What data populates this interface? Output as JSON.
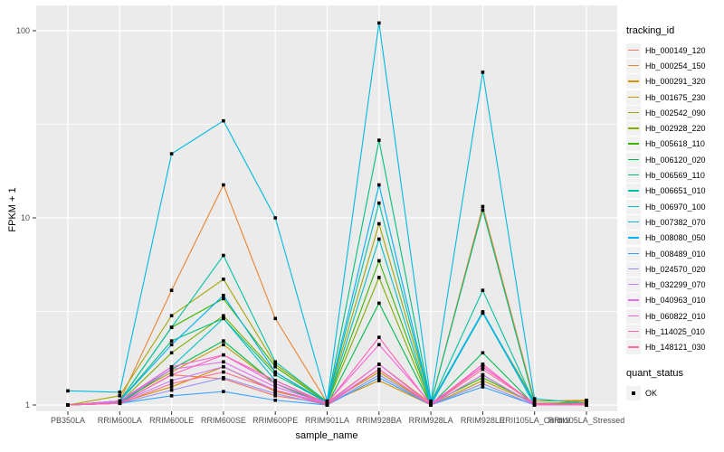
{
  "chart_data": {
    "type": "line",
    "title": "",
    "xlabel": "sample_name",
    "ylabel": "FPKM + 1",
    "y_scale": "log10",
    "y_ticks": [
      1,
      10,
      100
    ],
    "y_minor_gridlines": [
      3.162,
      31.623
    ],
    "ylim": [
      0.95,
      135
    ],
    "grid": true,
    "legend_position": "right",
    "legend_title": "tracking_id",
    "legend2": {
      "title": "quant_status",
      "items": [
        "OK"
      ]
    },
    "categories": [
      "PB350LA",
      "RRIM600LA",
      "RRIM600LE",
      "RRIM600SE",
      "RRIM600PE",
      "RRIM901LA",
      "RRIM928BA",
      "RRIM928LA",
      "RRIM928LE",
      "RRII105LA_Control",
      "RRII105LA_Stressed"
    ],
    "series": [
      {
        "name": "Hb_000149_120",
        "color": "#F8766D",
        "values": [
          1.0,
          1.02,
          1.45,
          1.38,
          1.12,
          1.02,
          1.55,
          1.0,
          1.6,
          1.02,
          1.02
        ]
      },
      {
        "name": "Hb_000254_150",
        "color": "#EA8331",
        "values": [
          1.0,
          1.05,
          4.1,
          15.0,
          2.9,
          1.03,
          1.65,
          1.02,
          11.5,
          1.05,
          1.06
        ]
      },
      {
        "name": "Hb_000291_320",
        "color": "#D89000",
        "values": [
          1.0,
          1.03,
          1.25,
          1.6,
          1.18,
          1.02,
          1.35,
          1.0,
          1.3,
          1.0,
          1.05
        ]
      },
      {
        "name": "Hb_001675_230",
        "color": "#C09B00",
        "values": [
          1.0,
          1.04,
          1.5,
          2.1,
          1.3,
          1.02,
          1.5,
          1.0,
          1.35,
          1.02,
          1.03
        ]
      },
      {
        "name": "Hb_002542_090",
        "color": "#A3A500",
        "values": [
          1.0,
          1.12,
          3.0,
          4.7,
          1.65,
          1.04,
          9.3,
          1.03,
          3.1,
          1.05,
          1.05
        ]
      },
      {
        "name": "Hb_002928_220",
        "color": "#7CAE00",
        "values": [
          1.0,
          1.03,
          1.9,
          3.0,
          1.5,
          1.02,
          4.8,
          1.0,
          1.45,
          1.0,
          1.02
        ]
      },
      {
        "name": "Hb_005618_110",
        "color": "#39B600",
        "values": [
          1.0,
          1.05,
          2.6,
          3.7,
          1.6,
          1.03,
          5.9,
          1.02,
          1.4,
          1.02,
          1.02
        ]
      },
      {
        "name": "Hb_006120_020",
        "color": "#00BB4E",
        "values": [
          1.0,
          1.02,
          1.55,
          2.2,
          1.3,
          1.0,
          3.5,
          1.0,
          1.9,
          1.0,
          1.0
        ]
      },
      {
        "name": "Hb_006569_110",
        "color": "#00BF7D",
        "values": [
          1.0,
          1.05,
          2.2,
          2.9,
          1.45,
          1.03,
          26.0,
          1.02,
          11.0,
          1.02,
          1.0
        ]
      },
      {
        "name": "Hb_006651_010",
        "color": "#00C1A3",
        "values": [
          1.0,
          1.05,
          2.6,
          6.3,
          1.7,
          1.04,
          12.0,
          1.02,
          4.1,
          1.02,
          1.0
        ]
      },
      {
        "name": "Hb_006970_100",
        "color": "#00BFC4",
        "values": [
          1.0,
          1.03,
          1.6,
          2.9,
          1.35,
          1.02,
          7.7,
          1.0,
          3.1,
          1.0,
          1.0
        ]
      },
      {
        "name": "Hb_007382_070",
        "color": "#00BAE0",
        "values": [
          1.19,
          1.17,
          22.0,
          33.0,
          10.0,
          1.05,
          110.0,
          1.05,
          60.0,
          1.08,
          1.02
        ]
      },
      {
        "name": "Hb_008080_050",
        "color": "#00B0F6",
        "values": [
          1.0,
          1.05,
          2.1,
          3.85,
          1.5,
          1.03,
          15.0,
          1.02,
          3.15,
          1.02,
          1.0
        ]
      },
      {
        "name": "Hb_008489_010",
        "color": "#35A2FF",
        "values": [
          1.0,
          1.02,
          1.12,
          1.18,
          1.06,
          1.0,
          1.4,
          1.0,
          1.25,
          1.0,
          1.0
        ]
      },
      {
        "name": "Hb_024570_020",
        "color": "#9590FF",
        "values": [
          1.0,
          1.02,
          1.2,
          1.4,
          1.15,
          1.0,
          1.45,
          1.0,
          1.3,
          1.0,
          1.0
        ]
      },
      {
        "name": "Hb_032299_070",
        "color": "#C77CFF",
        "values": [
          1.0,
          1.03,
          1.35,
          1.6,
          1.2,
          1.02,
          1.55,
          1.0,
          1.45,
          1.0,
          1.0
        ]
      },
      {
        "name": "Hb_040963_010",
        "color": "#E76BF3",
        "values": [
          1.0,
          1.05,
          1.55,
          1.7,
          1.25,
          1.02,
          1.65,
          1.0,
          1.65,
          1.0,
          1.0
        ]
      },
      {
        "name": "Hb_060822_010",
        "color": "#FA62DB",
        "values": [
          1.0,
          1.05,
          1.6,
          1.85,
          1.3,
          1.03,
          2.1,
          1.02,
          1.6,
          1.02,
          1.0
        ]
      },
      {
        "name": "Hb_114025_010",
        "color": "#FF62BC",
        "values": [
          1.0,
          1.02,
          1.45,
          1.85,
          1.35,
          1.02,
          2.3,
          1.0,
          1.65,
          1.0,
          1.02
        ]
      },
      {
        "name": "Hb_148121_030",
        "color": "#FF6A98",
        "values": [
          1.0,
          1.02,
          1.3,
          1.5,
          1.2,
          1.0,
          1.55,
          1.0,
          1.55,
          1.02,
          1.0
        ]
      }
    ]
  },
  "colors": {
    "panel_bg": "#EBEBEB",
    "gridline": "#FFFFFF",
    "axis_text": "#4D4D4D",
    "axis_title": "#000000",
    "tick_mark": "#333333",
    "legend_key_bg": "#F2F2F2",
    "marker": "#000000",
    "figure_bg": "#FFFFFF"
  }
}
